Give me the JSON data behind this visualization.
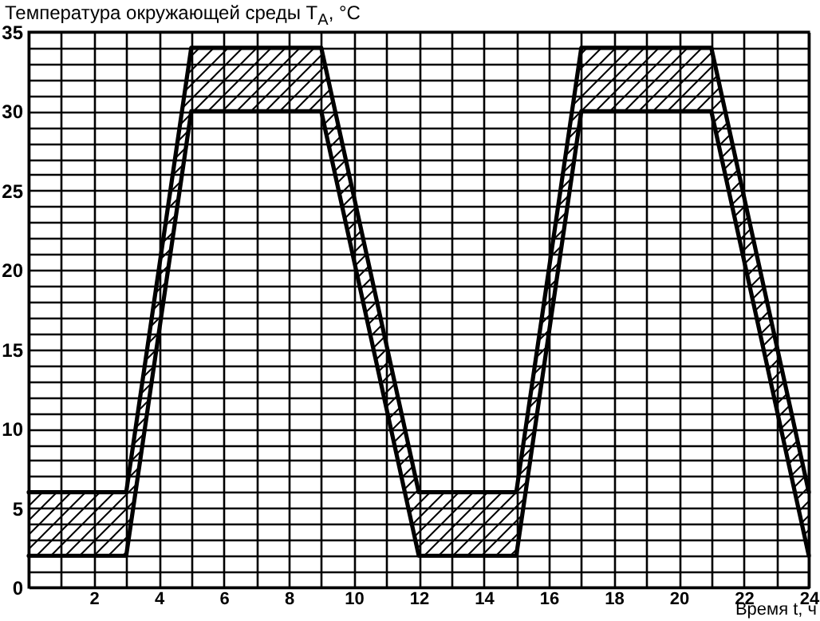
{
  "chart_data": {
    "type": "line",
    "xlabel": "Время t, ч",
    "ylabel": "Температура окружающей среды T$_{A}$, °C",
    "x": [
      0,
      3,
      5,
      9,
      12,
      15,
      17,
      21,
      24
    ],
    "series": [
      {
        "color": "#000000",
        "values": [
          6,
          6,
          34,
          34,
          6,
          6,
          34,
          34,
          6
        ],
        "lower": [
          2,
          2,
          30,
          30,
          2,
          2,
          30,
          30,
          2
        ],
        "upper": [
          6,
          6,
          34,
          34,
          6,
          6,
          34,
          34,
          6
        ]
      },
      {
        "color": "#000000",
        "values": [
          2,
          2,
          30,
          30,
          2,
          2,
          30,
          30,
          2
        ]
      }
    ],
    "xlim": [
      0,
      24
    ],
    "ylim": [
      0,
      35
    ],
    "xticks": [
      {
        "value": 0,
        "label": null
      },
      {
        "value": 1,
        "label": null
      },
      2,
      {
        "value": 3,
        "label": null
      },
      4,
      {
        "value": 5,
        "label": null
      },
      6,
      {
        "value": 7,
        "label": null
      },
      8,
      {
        "value": 9,
        "label": null
      },
      10,
      {
        "value": 11,
        "label": null
      },
      12,
      {
        "value": 13,
        "label": null
      },
      14,
      {
        "value": 15,
        "label": null
      },
      16,
      {
        "value": 17,
        "label": null
      },
      18,
      {
        "value": 19,
        "label": null
      },
      20,
      {
        "value": 21,
        "label": null
      },
      22,
      {
        "value": 23,
        "label": null
      },
      24
    ],
    "yticks": [
      0,
      {
        "value": 1,
        "label": null
      },
      {
        "value": 2,
        "label": null
      },
      {
        "value": 3,
        "label": null
      },
      {
        "value": 4,
        "label": null
      },
      5,
      {
        "value": 6,
        "label": null
      },
      {
        "value": 7,
        "label": null
      },
      {
        "value": 8,
        "label": null
      },
      {
        "value": 9,
        "label": null
      },
      10,
      {
        "value": 11,
        "label": null
      },
      {
        "value": 12,
        "label": null
      },
      {
        "value": 13,
        "label": null
      },
      {
        "value": 14,
        "label": null
      },
      15,
      {
        "value": 16,
        "label": null
      },
      {
        "value": 17,
        "label": null
      },
      {
        "value": 18,
        "label": null
      },
      {
        "value": 19,
        "label": null
      },
      20,
      {
        "value": 21,
        "label": null
      },
      {
        "value": 22,
        "label": null
      },
      {
        "value": 23,
        "label": null
      },
      {
        "value": 24,
        "label": null
      },
      25,
      {
        "value": 26,
        "label": null
      },
      {
        "value": 27,
        "label": null
      },
      {
        "value": 28,
        "label": null
      },
      {
        "value": 29,
        "label": null
      },
      30,
      {
        "value": 31,
        "label": null
      },
      {
        "value": 32,
        "label": null
      },
      {
        "value": 33,
        "label": null
      },
      {
        "value": 34,
        "label": null
      },
      35
    ],
    "grid": true
  }
}
